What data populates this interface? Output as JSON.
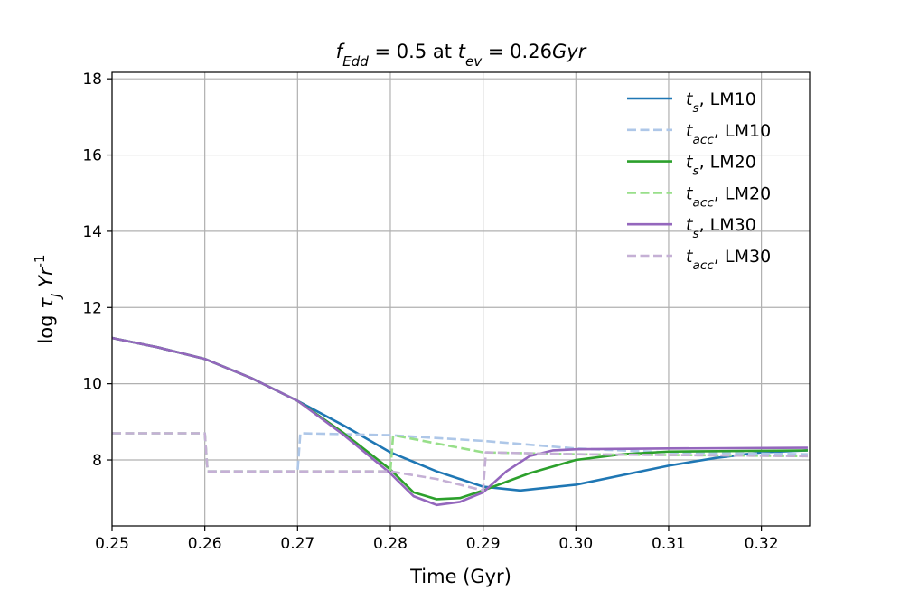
{
  "chart_data": {
    "type": "line",
    "title": "$f_{Edd} = 0.5$ at $t_{ev} = 0.26Gyr$",
    "x_label": "Time (Gyr)",
    "y_label": "log $τ_J$ $Yr^{-1}$",
    "xlim": [
      0.25,
      0.3252
    ],
    "ylim": [
      6.27,
      18.17
    ],
    "xticks": [
      0.25,
      0.26,
      0.27,
      0.28,
      0.29,
      {
        "value": 0.3,
        "label": "0.30"
      },
      0.31,
      0.32
    ],
    "yticks": [
      8,
      10,
      12,
      14,
      16,
      18
    ],
    "grid": true,
    "legend": "upper right",
    "series": [
      {
        "name": "$t_s$, LM10",
        "color": "#1f77b4",
        "linestyle": "solid",
        "x": [
          0.25,
          0.255,
          0.26,
          0.265,
          0.27,
          0.275,
          0.28,
          0.285,
          0.29,
          0.294,
          0.3,
          0.305,
          0.31,
          0.315,
          0.32,
          0.325
        ],
        "values": [
          11.2,
          10.95,
          10.65,
          10.15,
          9.55,
          8.9,
          8.2,
          7.7,
          7.3,
          7.2,
          7.35,
          7.6,
          7.85,
          8.05,
          8.2,
          8.25
        ]
      },
      {
        "name": "$t_{acc}$, LM10",
        "color": "#aec7e8",
        "linestyle": "dashed",
        "x": [
          0.25,
          0.26,
          0.2603,
          0.27,
          0.2703,
          0.28,
          0.29,
          0.3,
          0.31,
          0.325
        ],
        "values": [
          8.7,
          8.7,
          7.7,
          7.7,
          8.7,
          8.65,
          8.5,
          8.3,
          8.2,
          8.15
        ]
      },
      {
        "name": "$t_s$, LM20",
        "color": "#2ca02c",
        "linestyle": "solid",
        "x": [
          0.25,
          0.255,
          0.26,
          0.265,
          0.27,
          0.275,
          0.28,
          0.2825,
          0.285,
          0.2875,
          0.29,
          0.295,
          0.3,
          0.305,
          0.31,
          0.325
        ],
        "values": [
          11.2,
          10.95,
          10.65,
          10.15,
          9.55,
          8.7,
          7.75,
          7.15,
          6.97,
          7.0,
          7.2,
          7.65,
          8.0,
          8.15,
          8.22,
          8.25
        ]
      },
      {
        "name": "$t_{acc}$, LM20",
        "color": "#98df8a",
        "linestyle": "dashed",
        "x": [
          0.25,
          0.26,
          0.2603,
          0.28,
          0.2803,
          0.29,
          0.3,
          0.325
        ],
        "values": [
          8.7,
          8.7,
          7.7,
          7.7,
          8.65,
          8.2,
          8.15,
          8.1
        ]
      },
      {
        "name": "$t_s$, LM30",
        "color": "#9467bd",
        "linestyle": "solid",
        "x": [
          0.25,
          0.255,
          0.26,
          0.265,
          0.27,
          0.275,
          0.28,
          0.2825,
          0.285,
          0.2875,
          0.29,
          0.2925,
          0.295,
          0.2975,
          0.3,
          0.31,
          0.325
        ],
        "values": [
          11.2,
          10.95,
          10.65,
          10.15,
          9.55,
          8.65,
          7.65,
          7.05,
          6.82,
          6.9,
          7.15,
          7.7,
          8.1,
          8.25,
          8.28,
          8.3,
          8.32
        ]
      },
      {
        "name": "$t_{acc}$, LM30",
        "color": "#c5b0d5",
        "linestyle": "dashed",
        "x": [
          0.25,
          0.26,
          0.2603,
          0.28,
          0.285,
          0.29,
          0.2903,
          0.3,
          0.325
        ],
        "values": [
          8.7,
          8.7,
          7.7,
          7.7,
          7.5,
          7.2,
          8.2,
          8.15,
          8.1
        ]
      }
    ]
  }
}
